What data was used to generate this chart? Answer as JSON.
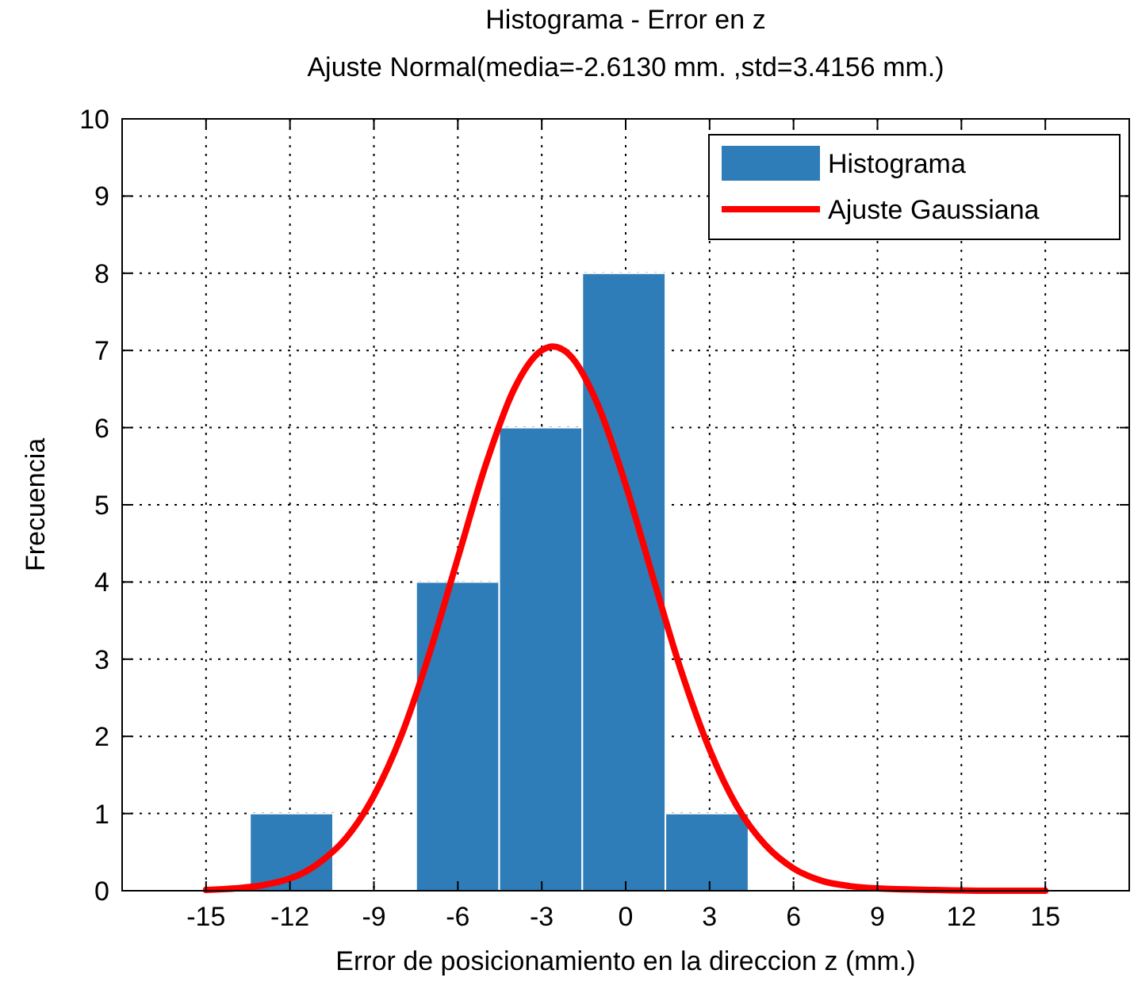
{
  "chart_data": {
    "type": "histogram",
    "title": "Histograma - Error en z",
    "subtitle": "Ajuste Normal(media=-2.6130 mm. ,std=3.4156 mm.)",
    "xlabel": "Error de posicionamiento en la direccion z (mm.)",
    "ylabel": "Frecuencia",
    "bins": [
      -13.43,
      -10.46,
      -7.49,
      -4.52,
      -1.55,
      1.42,
      4.39
    ],
    "series": [
      {
        "name": "Histograma",
        "color": "#2e7db8",
        "values": [
          1,
          0,
          4,
          6,
          8,
          1
        ]
      },
      {
        "type": "line",
        "name": "Ajuste Gaussiana",
        "color": "#ff0000",
        "x": [
          -15,
          -13,
          -11,
          -10,
          -9,
          -8,
          -7,
          -6,
          -5,
          -4,
          -3,
          -2.6,
          -2,
          -1,
          0,
          1,
          2,
          3,
          4,
          5,
          6,
          7,
          8,
          9,
          11,
          13,
          15
        ],
        "values": [
          0.01,
          0.07,
          0.35,
          0.68,
          1.23,
          2.03,
          3.09,
          4.31,
          5.52,
          6.49,
          7.0,
          7.05,
          6.94,
          6.3,
          5.26,
          4.03,
          2.83,
          1.83,
          1.08,
          0.59,
          0.29,
          0.13,
          0.06,
          0.03,
          0.01,
          0,
          0
        ]
      }
    ],
    "xlim": [
      -18,
      18
    ],
    "xticks": [
      -15,
      -12,
      -9,
      -6,
      -3,
      0,
      3,
      6,
      9,
      12,
      15
    ],
    "ylim": [
      0,
      10
    ],
    "yticks": [
      0,
      1,
      2,
      3,
      4,
      5,
      6,
      7,
      8,
      9,
      10
    ],
    "grid": true,
    "legend": "top right"
  }
}
